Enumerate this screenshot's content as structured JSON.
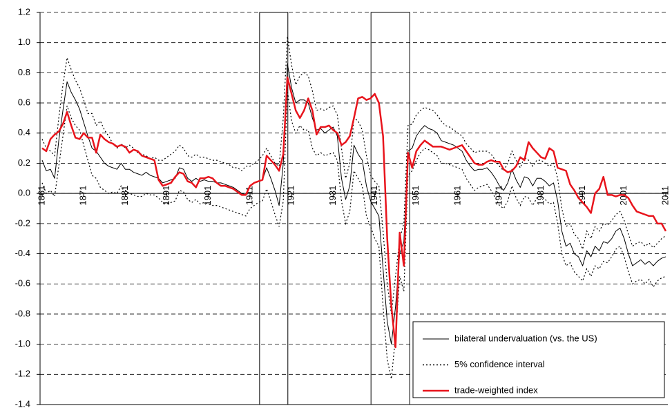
{
  "chart_data": {
    "type": "line",
    "x": [
      1861,
      1862,
      1863,
      1864,
      1865,
      1866,
      1867,
      1868,
      1869,
      1870,
      1871,
      1872,
      1873,
      1874,
      1875,
      1876,
      1877,
      1878,
      1879,
      1880,
      1881,
      1882,
      1883,
      1884,
      1885,
      1886,
      1887,
      1888,
      1889,
      1890,
      1891,
      1892,
      1893,
      1894,
      1895,
      1896,
      1897,
      1898,
      1899,
      1900,
      1901,
      1902,
      1903,
      1904,
      1905,
      1906,
      1907,
      1908,
      1909,
      1910,
      1911,
      1912,
      1913,
      1914,
      1915,
      1916,
      1917,
      1918,
      1919,
      1920,
      1921,
      1922,
      1923,
      1924,
      1925,
      1926,
      1927,
      1928,
      1929,
      1930,
      1931,
      1932,
      1933,
      1934,
      1935,
      1936,
      1937,
      1938,
      1939,
      1940,
      1941,
      1942,
      1943,
      1944,
      1945,
      1946,
      1947,
      1948,
      1949,
      1950,
      1951,
      1952,
      1953,
      1954,
      1955,
      1956,
      1957,
      1958,
      1959,
      1960,
      1961,
      1962,
      1963,
      1964,
      1965,
      1966,
      1967,
      1968,
      1969,
      1970,
      1971,
      1972,
      1973,
      1974,
      1975,
      1976,
      1977,
      1978,
      1979,
      1980,
      1981,
      1982,
      1983,
      1984,
      1985,
      1986,
      1987,
      1988,
      1989,
      1990,
      1991,
      1992,
      1993,
      1994,
      1995,
      1996,
      1997,
      1998,
      1999,
      2000,
      2001,
      2002,
      2003,
      2004,
      2005,
      2006,
      2007,
      2008,
      2009,
      2010,
      2011
    ],
    "confidence_interval": {
      "name": "5% confidence interval",
      "color": "#000000",
      "dash": "2 3",
      "upper": [
        0.36,
        0.3,
        0.28,
        0.25,
        0.5,
        0.72,
        0.9,
        0.82,
        0.75,
        0.7,
        0.62,
        0.53,
        0.53,
        0.45,
        0.48,
        0.42,
        0.38,
        0.33,
        0.3,
        0.33,
        0.3,
        0.32,
        0.3,
        0.27,
        0.26,
        0.25,
        0.23,
        0.24,
        0.22,
        0.22,
        0.24,
        0.26,
        0.28,
        0.32,
        0.3,
        0.25,
        0.24,
        0.26,
        0.24,
        0.24,
        0.23,
        0.22,
        0.22,
        0.21,
        0.2,
        0.19,
        0.17,
        0.17,
        0.15,
        0.18,
        0.18,
        0.2,
        0.22,
        0.25,
        0.3,
        0.25,
        0.2,
        0.18,
        0.5,
        1.04,
        0.85,
        0.72,
        0.78,
        0.8,
        0.78,
        0.68,
        0.55,
        0.56,
        0.55,
        0.57,
        0.58,
        0.52,
        0.3,
        0.1,
        0.2,
        0.5,
        0.48,
        0.42,
        0.25,
        0.12,
        0.08,
        0.05,
        -0.25,
        -0.6,
        -0.8,
        -0.55,
        -0.3,
        -0.2,
        0.45,
        0.46,
        0.52,
        0.55,
        0.57,
        0.56,
        0.55,
        0.52,
        0.48,
        0.45,
        0.44,
        0.42,
        0.4,
        0.38,
        0.33,
        0.3,
        0.27,
        0.28,
        0.28,
        0.28,
        0.26,
        0.22,
        0.18,
        0.15,
        0.2,
        0.28,
        0.22,
        0.17,
        0.24,
        0.22,
        0.18,
        0.22,
        0.22,
        0.2,
        0.18,
        0.2,
        0.1,
        -0.1,
        -0.22,
        -0.2,
        -0.27,
        -0.3,
        -0.37,
        -0.25,
        -0.3,
        -0.22,
        -0.25,
        -0.2,
        -0.21,
        -0.18,
        -0.14,
        -0.12,
        -0.18,
        -0.27,
        -0.35,
        -0.33,
        -0.32,
        -0.35,
        -0.33,
        -0.36,
        -0.33,
        -0.3,
        -0.28
      ],
      "lower": [
        0.07,
        0.0,
        0.02,
        -0.02,
        0.18,
        0.38,
        0.58,
        0.5,
        0.45,
        0.42,
        0.32,
        0.22,
        0.12,
        0.1,
        0.04,
        0.02,
        0.0,
        0.01,
        0.0,
        0.05,
        0.02,
        0.0,
        -0.01,
        -0.02,
        -0.02,
        0.0,
        -0.01,
        -0.01,
        -0.03,
        -0.06,
        -0.07,
        -0.06,
        -0.05,
        0.02,
        0.01,
        -0.04,
        -0.06,
        -0.04,
        -0.07,
        -0.06,
        -0.07,
        -0.08,
        -0.08,
        -0.09,
        -0.1,
        -0.11,
        -0.12,
        -0.13,
        -0.14,
        -0.15,
        -0.1,
        -0.08,
        -0.06,
        -0.05,
        0.03,
        -0.05,
        -0.14,
        -0.22,
        -0.05,
        0.68,
        0.48,
        0.4,
        0.45,
        0.42,
        0.42,
        0.3,
        0.25,
        0.27,
        0.25,
        0.26,
        0.27,
        0.22,
        -0.05,
        -0.2,
        -0.12,
        0.15,
        0.1,
        0.05,
        -0.15,
        -0.22,
        -0.3,
        -0.35,
        -0.75,
        -1.1,
        -1.23,
        -0.95,
        -0.55,
        -0.65,
        0.12,
        0.15,
        0.22,
        0.27,
        0.3,
        0.29,
        0.27,
        0.25,
        0.2,
        0.2,
        0.19,
        0.18,
        0.17,
        0.16,
        0.1,
        0.06,
        0.02,
        0.04,
        0.05,
        0.06,
        0.02,
        -0.03,
        -0.08,
        -0.1,
        -0.05,
        0.05,
        -0.03,
        -0.08,
        -0.02,
        -0.03,
        -0.08,
        -0.03,
        -0.02,
        -0.04,
        -0.07,
        -0.06,
        -0.2,
        -0.4,
        -0.48,
        -0.46,
        -0.52,
        -0.55,
        -0.58,
        -0.5,
        -0.55,
        -0.48,
        -0.5,
        -0.45,
        -0.46,
        -0.42,
        -0.37,
        -0.35,
        -0.42,
        -0.52,
        -0.6,
        -0.58,
        -0.57,
        -0.6,
        -0.57,
        -0.62,
        -0.58,
        -0.56,
        -0.55
      ]
    },
    "series": [
      {
        "name": "bilateral undervaluation (vs. the US)",
        "color": "#000000",
        "width": 1,
        "values": [
          0.22,
          0.15,
          0.16,
          0.1,
          0.35,
          0.55,
          0.74,
          0.67,
          0.62,
          0.56,
          0.47,
          0.38,
          0.3,
          0.28,
          0.24,
          0.2,
          0.18,
          0.17,
          0.16,
          0.2,
          0.16,
          0.16,
          0.14,
          0.13,
          0.12,
          0.14,
          0.12,
          0.11,
          0.1,
          0.07,
          0.08,
          0.09,
          0.1,
          0.17,
          0.16,
          0.1,
          0.08,
          0.1,
          0.08,
          0.09,
          0.08,
          0.08,
          0.07,
          0.07,
          0.06,
          0.05,
          0.04,
          0.02,
          0.0,
          -0.01,
          0.05,
          0.07,
          0.08,
          0.09,
          0.17,
          0.1,
          0.02,
          -0.08,
          0.2,
          0.86,
          0.7,
          0.6,
          0.62,
          0.62,
          0.6,
          0.5,
          0.42,
          0.43,
          0.4,
          0.42,
          0.44,
          0.38,
          0.1,
          -0.04,
          0.05,
          0.32,
          0.26,
          0.22,
          0.05,
          -0.05,
          -0.1,
          -0.15,
          -0.5,
          -0.85,
          -1.0,
          -0.75,
          -0.4,
          -0.32,
          0.28,
          0.3,
          0.38,
          0.42,
          0.45,
          0.43,
          0.42,
          0.4,
          0.35,
          0.34,
          0.33,
          0.32,
          0.3,
          0.28,
          0.22,
          0.18,
          0.15,
          0.16,
          0.16,
          0.17,
          0.14,
          0.1,
          0.05,
          0.02,
          0.07,
          0.16,
          0.09,
          0.04,
          0.11,
          0.1,
          0.05,
          0.1,
          0.1,
          0.08,
          0.05,
          0.07,
          -0.05,
          -0.25,
          -0.35,
          -0.33,
          -0.4,
          -0.42,
          -0.48,
          -0.38,
          -0.42,
          -0.35,
          -0.38,
          -0.32,
          -0.33,
          -0.3,
          -0.25,
          -0.23,
          -0.3,
          -0.4,
          -0.48,
          -0.46,
          -0.44,
          -0.47,
          -0.45,
          -0.48,
          -0.45,
          -0.43,
          -0.42
        ]
      },
      {
        "name": "trade-weighted index",
        "color": "#e8141c",
        "width": 2.5,
        "values": [
          0.3,
          0.28,
          0.36,
          0.39,
          0.41,
          0.46,
          0.54,
          0.45,
          0.37,
          0.36,
          0.4,
          0.37,
          0.37,
          0.27,
          0.39,
          0.36,
          0.34,
          0.33,
          0.31,
          0.32,
          0.31,
          0.27,
          0.29,
          0.28,
          0.25,
          0.24,
          0.23,
          0.22,
          0.09,
          0.05,
          0.06,
          0.07,
          0.11,
          0.14,
          0.13,
          0.08,
          0.07,
          0.04,
          0.1,
          0.1,
          0.11,
          0.1,
          0.07,
          0.05,
          0.05,
          0.04,
          0.03,
          0.01,
          -0.01,
          -0.01,
          0.05,
          0.07,
          0.08,
          0.09,
          0.25,
          0.22,
          0.19,
          0.15,
          0.26,
          0.77,
          0.66,
          0.55,
          0.5,
          0.55,
          0.63,
          0.55,
          0.39,
          0.44,
          0.44,
          0.45,
          0.42,
          0.4,
          0.32,
          0.34,
          0.38,
          0.5,
          0.63,
          0.64,
          0.62,
          0.63,
          0.66,
          0.6,
          0.38,
          -0.3,
          -0.75,
          -1.02,
          -0.26,
          -0.48,
          0.27,
          0.17,
          0.28,
          0.32,
          0.35,
          0.33,
          0.31,
          0.31,
          0.31,
          0.3,
          0.29,
          0.3,
          0.31,
          0.32,
          0.28,
          0.24,
          0.2,
          0.19,
          0.19,
          0.21,
          0.22,
          0.21,
          0.21,
          0.16,
          0.14,
          0.15,
          0.18,
          0.24,
          0.22,
          0.34,
          0.3,
          0.27,
          0.24,
          0.23,
          0.3,
          0.28,
          0.17,
          0.16,
          0.15,
          0.06,
          0.02,
          -0.03,
          -0.06,
          -0.09,
          -0.13,
          0.0,
          0.03,
          0.11,
          -0.01,
          -0.01,
          -0.02,
          -0.01,
          -0.01,
          -0.03,
          -0.08,
          -0.12,
          -0.13,
          -0.14,
          -0.15,
          -0.15,
          -0.2,
          -0.2,
          -0.25
        ]
      }
    ],
    "periods": [
      [
        1913.3,
        1920.1
      ],
      [
        1940.1,
        1949.4
      ]
    ],
    "xlim": [
      1860.5,
      2011.5
    ],
    "xticks": [
      1861,
      1871,
      1881,
      1891,
      1901,
      1911,
      1921,
      1931,
      1941,
      1951,
      1961,
      1971,
      1981,
      1991,
      2001,
      2011
    ],
    "ylim": [
      -1.4,
      1.2
    ],
    "yticks": [
      -1.4,
      -1.2,
      {
        "value": -1,
        "label": "-1.0"
      },
      -0.8,
      -0.6,
      -0.4,
      -0.2,
      {
        "value": 0,
        "label": "0.0"
      },
      0.2,
      0.4,
      0.6,
      0.8,
      {
        "value": 1,
        "label": "1.0"
      },
      1.2
    ],
    "grid": true,
    "legend": "bottom-right"
  }
}
